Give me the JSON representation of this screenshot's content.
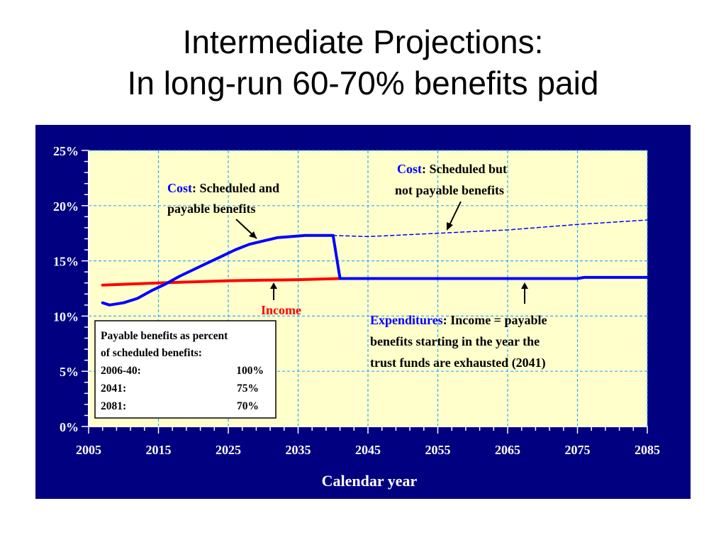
{
  "slide": {
    "title_line1": "Intermediate Projections:",
    "title_line2": "In long-run 60-70% benefits paid"
  },
  "chart_data": {
    "type": "line",
    "xlabel": "Calendar year",
    "ylabel": "",
    "xlim": [
      2005,
      2085
    ],
    "ylim": [
      0,
      25
    ],
    "x_ticks": [
      "2005",
      "2015",
      "2025",
      "2035",
      "2045",
      "2055",
      "2065",
      "2075",
      "2085"
    ],
    "y_ticks": [
      "0%",
      "5%",
      "10%",
      "15%",
      "20%",
      "25%"
    ],
    "grid": true,
    "colors": {
      "frame": "#000080",
      "plot_bg": "#ffffcc",
      "cost": "#0000ff",
      "income": "#ff0000",
      "grid": "#33aaff"
    },
    "series": [
      {
        "name": "Income",
        "color": "#ff0000",
        "x": [
          2007,
          2015,
          2025,
          2035,
          2041
        ],
        "y": [
          12.8,
          13.0,
          13.2,
          13.3,
          13.4
        ]
      },
      {
        "name": "Cost",
        "color": "#0000ff",
        "x": [
          2007,
          2008,
          2010,
          2012,
          2014,
          2016,
          2018,
          2020,
          2022,
          2024,
          2026,
          2028,
          2030,
          2032,
          2034,
          2036,
          2038,
          2040,
          2041,
          2045,
          2055,
          2065,
          2075,
          2076,
          2085
        ],
        "y": [
          11.2,
          11.0,
          11.2,
          11.6,
          12.3,
          12.9,
          13.6,
          14.2,
          14.8,
          15.4,
          16.0,
          16.5,
          16.8,
          17.1,
          17.2,
          17.3,
          17.3,
          17.3,
          13.4,
          13.4,
          13.4,
          13.4,
          13.4,
          13.5,
          13.5
        ]
      },
      {
        "name": "Cost: Scheduled but not payable benefits",
        "color": "#0000ff",
        "dashed": true,
        "x": [
          2040,
          2045,
          2055,
          2065,
          2075,
          2085
        ],
        "y": [
          17.3,
          17.2,
          17.5,
          17.8,
          18.3,
          18.7
        ]
      }
    ],
    "annotations": {
      "cost_scheduled_payable": {
        "lead": "Cost",
        "rest": ": Scheduled and",
        "line2": "payable benefits"
      },
      "cost_scheduled_not_payable": {
        "lead": "Cost",
        "rest": ": Scheduled but",
        "line2": "not payable benefits"
      },
      "income_label": "Income",
      "expenditures": {
        "lead": "Expenditures",
        "rest": ": Income = payable",
        "line2": "benefits starting in the year the",
        "line3": "trust funds are exhausted (2041)"
      }
    },
    "table": {
      "heading_line1": "Payable benefits as percent",
      "heading_line2": "of scheduled benefits:",
      "rows": [
        {
          "period": "2006-40:",
          "value": "100%"
        },
        {
          "period": "2041:",
          "value": "75%"
        },
        {
          "period": "2081:",
          "value": "70%"
        }
      ]
    }
  }
}
